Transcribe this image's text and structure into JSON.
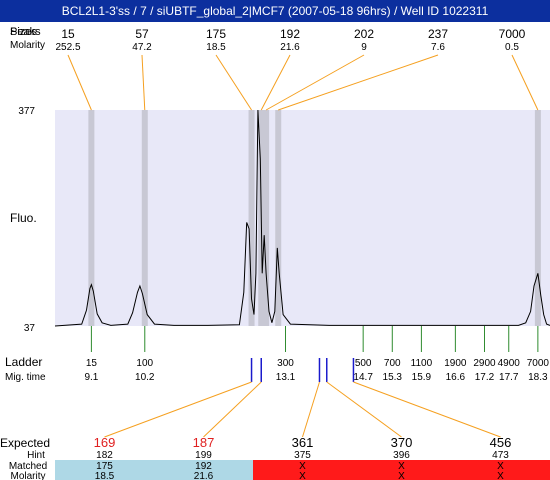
{
  "title": "BCL2L1-3'ss / 7 / siUBTF_global_2|MCF7 (2007-05-18 96hrs) / Well ID 1022311",
  "labels": {
    "row_top": "Peaks",
    "row_top_overlap": "Sizes",
    "molarity": "Molarity",
    "fluo": "Fluo.",
    "ladder": "Ladder",
    "mig_time": "Mig. time",
    "expected": "Expected",
    "hint": "Hint",
    "matched": "Matched",
    "molarity_bottom": "Molarity"
  },
  "colors": {
    "title_bg": "#0c2f9e",
    "plot_bg": "#e8e8f8",
    "band": "#c8c8d4",
    "connector": "#f5a020",
    "ladder_tick": "#2e8b2e",
    "marker": "#1a1acc",
    "expected_red": "#e02020",
    "matched_blue": "#aed8e6",
    "unmatched_red": "#ff1a1a"
  },
  "chart_data": {
    "type": "line",
    "y_axis": {
      "max_label": "377",
      "min_label": "37",
      "label": "Fluo."
    },
    "peaks": [
      {
        "size": "15",
        "molarity": "252.5",
        "mig_time": 9.1
      },
      {
        "size": "57",
        "molarity": "47.2",
        "mig_time": 10.2
      },
      {
        "size": "175",
        "molarity": "18.5",
        "mig_time": 12.4
      },
      {
        "size": "192",
        "molarity": "21.6",
        "mig_time": 12.6
      },
      {
        "size": "202",
        "molarity": "9",
        "mig_time": 12.7
      },
      {
        "size": "237",
        "molarity": "7.6",
        "mig_time": 12.95
      },
      {
        "size": "7000",
        "molarity": "0.5",
        "mig_time": 18.3
      }
    ],
    "trace": [
      [
        8.35,
        37
      ],
      [
        8.9,
        40
      ],
      [
        9.0,
        62
      ],
      [
        9.07,
        96
      ],
      [
        9.1,
        102
      ],
      [
        9.14,
        92
      ],
      [
        9.22,
        56
      ],
      [
        9.32,
        42
      ],
      [
        9.5,
        38
      ],
      [
        9.85,
        40
      ],
      [
        9.95,
        58
      ],
      [
        10.05,
        90
      ],
      [
        10.1,
        100
      ],
      [
        10.15,
        88
      ],
      [
        10.25,
        55
      ],
      [
        10.4,
        40
      ],
      [
        10.8,
        38
      ],
      [
        11.5,
        38
      ],
      [
        12.15,
        39
      ],
      [
        12.24,
        90
      ],
      [
        12.3,
        200
      ],
      [
        12.35,
        190
      ],
      [
        12.4,
        80
      ],
      [
        12.45,
        55
      ],
      [
        12.49,
        120
      ],
      [
        12.53,
        377
      ],
      [
        12.58,
        300
      ],
      [
        12.62,
        120
      ],
      [
        12.66,
        180
      ],
      [
        12.7,
        120
      ],
      [
        12.76,
        60
      ],
      [
        12.82,
        42
      ],
      [
        12.88,
        60
      ],
      [
        12.93,
        160
      ],
      [
        12.97,
        120
      ],
      [
        13.05,
        55
      ],
      [
        13.2,
        40
      ],
      [
        14.0,
        38
      ],
      [
        15.0,
        38
      ],
      [
        16.0,
        38
      ],
      [
        17.0,
        38
      ],
      [
        17.9,
        38
      ],
      [
        18.05,
        42
      ],
      [
        18.15,
        60
      ],
      [
        18.22,
        100
      ],
      [
        18.3,
        120
      ],
      [
        18.36,
        85
      ],
      [
        18.42,
        55
      ],
      [
        18.48,
        40
      ],
      [
        18.55,
        38
      ]
    ],
    "ladder": [
      {
        "size": "15",
        "mig_time": "9.1"
      },
      {
        "size": "100",
        "mig_time": "10.2"
      },
      {
        "size": "300",
        "mig_time": "13.1"
      },
      {
        "size": "500",
        "mig_time": "14.7"
      },
      {
        "size": "700",
        "mig_time": "15.3"
      },
      {
        "size": "1100",
        "mig_time": "15.9"
      },
      {
        "size": "1900",
        "mig_time": "16.6"
      },
      {
        "size": "2900",
        "mig_time": "17.2"
      },
      {
        "size": "4900",
        "mig_time": "17.7"
      },
      {
        "size": "7000",
        "mig_time": "18.3"
      }
    ],
    "expected": [
      {
        "expected": "169",
        "hint": "182",
        "matched": "175",
        "molarity": "18.5",
        "is_matched": true,
        "marker_time": 12.4
      },
      {
        "expected": "187",
        "hint": "199",
        "matched": "192",
        "molarity": "21.6",
        "is_matched": true,
        "marker_time": 12.6
      },
      {
        "expected": "361",
        "hint": "375",
        "matched": "X",
        "molarity": "X",
        "is_matched": false,
        "marker_time": 13.8
      },
      {
        "expected": "370",
        "hint": "396",
        "matched": "X",
        "molarity": "X",
        "is_matched": false,
        "marker_time": 13.95
      },
      {
        "expected": "456",
        "hint": "473",
        "matched": "X",
        "molarity": "X",
        "is_matched": false,
        "marker_time": 14.5
      }
    ]
  }
}
